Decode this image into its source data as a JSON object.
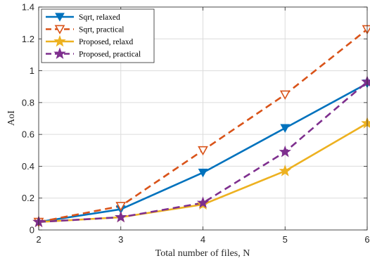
{
  "chart_data": {
    "type": "line",
    "xlabel": "Total number of files, N",
    "ylabel": "AoI",
    "x": [
      2,
      3,
      4,
      5,
      6
    ],
    "xlim": [
      2,
      6
    ],
    "ylim": [
      0,
      1.4
    ],
    "xticks": [
      2,
      3,
      4,
      5,
      6
    ],
    "yticks": [
      0,
      0.2,
      0.4,
      0.6,
      0.8,
      1,
      1.2,
      1.4
    ],
    "grid": true,
    "legend_position": "top-left",
    "series": [
      {
        "name": "Sqrt, relaxed",
        "values": [
          0.05,
          0.13,
          0.36,
          0.64,
          0.92
        ],
        "color": "#0072BD",
        "line_style": "solid",
        "marker": "triangle-down-filled"
      },
      {
        "name": "Sqrt, practical",
        "values": [
          0.05,
          0.15,
          0.5,
          0.85,
          1.26
        ],
        "color": "#D95319",
        "line_style": "dashed",
        "marker": "triangle-down-open"
      },
      {
        "name": "Proposed, relaxd",
        "values": [
          0.05,
          0.08,
          0.16,
          0.37,
          0.67
        ],
        "color": "#EDB120",
        "line_style": "solid",
        "marker": "star-filled"
      },
      {
        "name": "Proposed, practical",
        "values": [
          0.05,
          0.08,
          0.17,
          0.49,
          0.93
        ],
        "color": "#7E2F8E",
        "line_style": "dashed",
        "marker": "star-filled"
      }
    ]
  }
}
